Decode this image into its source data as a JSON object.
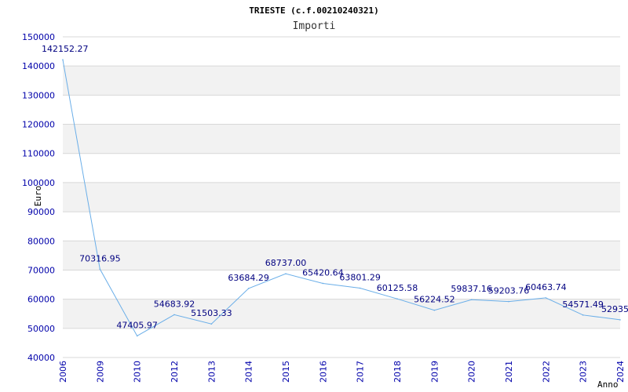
{
  "chart_data": {
    "type": "line",
    "title": "TRIESTE (c.f.00210240321)",
    "subtitle": "Importi",
    "ylabel": "Euro",
    "xlabel": "Anno",
    "ylim": [
      40000,
      150000
    ],
    "y_ticks": [
      40000,
      50000,
      60000,
      70000,
      80000,
      90000,
      100000,
      110000,
      120000,
      130000,
      140000,
      150000
    ],
    "grid": true,
    "categories": [
      "2006",
      "2009",
      "2010",
      "2012",
      "2013",
      "2014",
      "2015",
      "2016",
      "2017",
      "2018",
      "2019",
      "2020",
      "2021",
      "2022",
      "2023",
      "2024"
    ],
    "series": [
      {
        "values": [
          142152.27,
          70316.95,
          47405.97,
          54683.92,
          51503.33,
          63684.29,
          68737.0,
          65420.64,
          63801.29,
          60125.58,
          56224.52,
          59837.16,
          59203.76,
          60463.74,
          54571.49,
          52935.0
        ],
        "labels": [
          "142152.27",
          "70316.95",
          "47405.97",
          "54683.92",
          "51503.33",
          "63684.29",
          "68737.00",
          "65420.64",
          "63801.29",
          "60125.58",
          "56224.52",
          "59837.16",
          "59203.76",
          "60463.74",
          "54571.49",
          "52935."
        ]
      }
    ],
    "colors": {
      "line": "#6aaee8",
      "axis_text": "#0000aa",
      "data_label": "#000080",
      "band": "#f2f2f2",
      "grid": "#d8d8d8"
    }
  }
}
